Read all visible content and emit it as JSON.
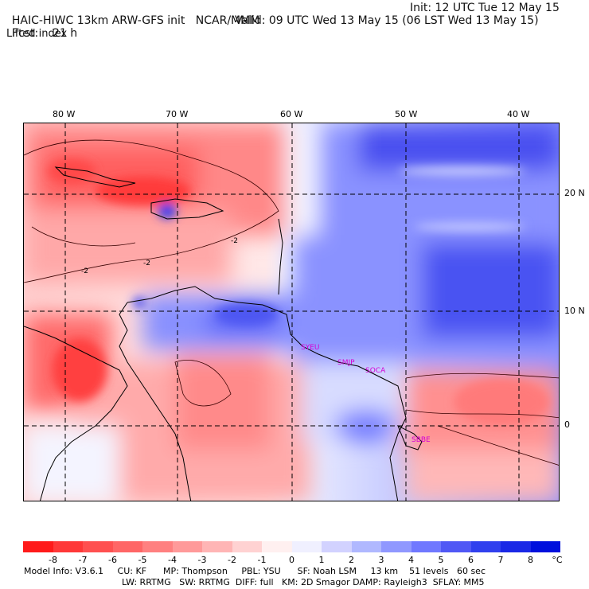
{
  "header": {
    "model": "HAIC-HIWC 13km ARW-GFS init",
    "center": "NCAR/MMM",
    "init": "Init: 12 UTC Tue 12 May 15",
    "fcst_label": "Fcst:",
    "fcst_value": "21 h",
    "valid": "Valid: 09 UTC Wed 13 May 15 (06 LST Wed 13 May 15)",
    "field": "Lifted index"
  },
  "map": {
    "lon_labels": [
      "80 W",
      "70 W",
      "60 W",
      "50 W",
      "40 W"
    ],
    "lat_labels": [
      "20 N",
      "10 N",
      "0"
    ],
    "contour_labels": [
      "-2",
      "-2",
      "-2"
    ],
    "cities": [
      "SYEU",
      "SMJP",
      "SOCA",
      "SBBE"
    ]
  },
  "colorbar": {
    "ticks": [
      "-8",
      "-7",
      "-6",
      "-5",
      "-4",
      "-3",
      "-2",
      "-1",
      "0",
      "1",
      "2",
      "3",
      "4",
      "5",
      "6",
      "7",
      "8"
    ],
    "unit": "°C",
    "colors": [
      "#ff1a1a",
      "#ff3838",
      "#ff5050",
      "#ff6666",
      "#ff8080",
      "#ff9a9a",
      "#ffb5b5",
      "#ffd2d2",
      "#fff0f0",
      "#f0f0ff",
      "#d2d2ff",
      "#b0b8ff",
      "#9098ff",
      "#7078ff",
      "#5058f5",
      "#3040ee",
      "#1a28e6",
      "#0010dd"
    ]
  },
  "footer": {
    "line1": "Model Info: V3.6.1     CU: KF      MP: Thompson     PBL: YSU      SF: Noah LSM     13 km    51 levels   60 sec",
    "line2": "LW: RRTMG   SW: RRTMG  DIFF: full   KM: 2D Smagor DAMP: Rayleigh3  SFLAY: MM5"
  }
}
